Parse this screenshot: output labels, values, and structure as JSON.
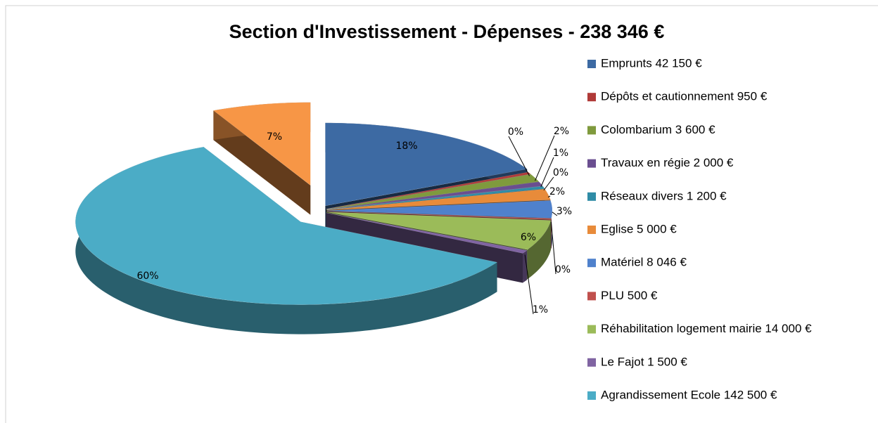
{
  "chart_data": {
    "type": "pie",
    "title": "Section d'Investissement - Dépenses - 238 346 €",
    "series": [
      {
        "name": "Emprunts 42 150 €",
        "color": "#3d6aa3"
      },
      {
        "name": "Dépôts et cautionnement 950 €",
        "color": "#b03a38"
      },
      {
        "name": "Colombarium 3 600 €",
        "color": "#7f9a3d"
      },
      {
        "name": "Travaux en régie 2 000 €",
        "color": "#6a4e90"
      },
      {
        "name": "Réseaux divers 1 200 €",
        "color": "#2f8ca6"
      },
      {
        "name": "Eglise 5 000 €",
        "color": "#e88b3a"
      },
      {
        "name": "Matériel 8 046 €",
        "color": "#4f81cc"
      },
      {
        "name": "PLU 500 €",
        "color": "#c0504d"
      },
      {
        "name": "Réhabilitation logement mairie 14 000 €",
        "color": "#9bbb59"
      },
      {
        "name": "Le Fajot 1 500 €",
        "color": "#8064a2"
      },
      {
        "name": "Agrandissement Ecole 142 500 €",
        "color": "#4bacc6"
      },
      {
        "name": null,
        "color": "#f79646"
      }
    ],
    "values": [
      17.68,
      0.4,
      1.51,
      0.84,
      0.5,
      2.1,
      3.38,
      0.21,
      5.87,
      0.63,
      59.79,
      7.09
    ],
    "value_labels": [
      "18%",
      "0%",
      "2%",
      "1%",
      "0%",
      "2%",
      "3%",
      "0%",
      "6%",
      "1%",
      "60%",
      "7%"
    ]
  }
}
